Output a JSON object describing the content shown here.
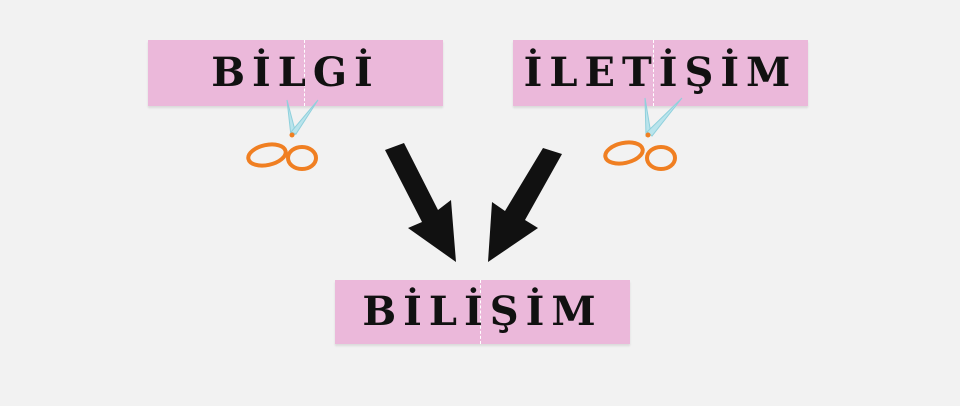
{
  "words": {
    "left": "BİLGİ",
    "right": "İLETİŞİM",
    "result": "BİLİŞİM"
  },
  "colors": {
    "background": "#f2f2f2",
    "card": "#ebb8da",
    "text": "#111111",
    "arrow": "#111111",
    "scissor_handle": "#f07f22",
    "scissor_blade": "#b9e4ec"
  },
  "icons": [
    "scissors-icon",
    "arrow-down-right-icon",
    "arrow-down-left-icon"
  ]
}
